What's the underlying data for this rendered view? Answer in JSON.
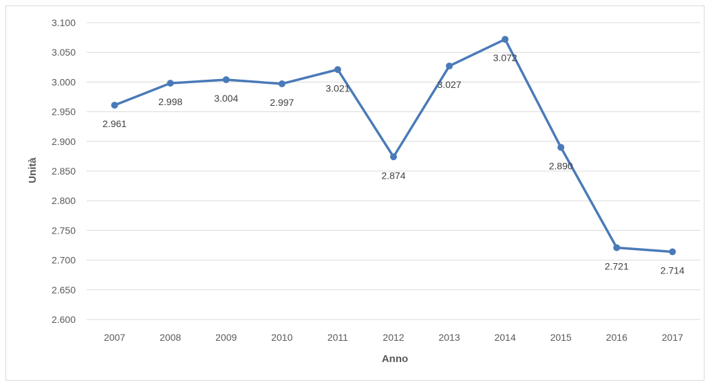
{
  "chart_data": {
    "type": "line",
    "x": [
      "2007",
      "2008",
      "2009",
      "2010",
      "2011",
      "2012",
      "2013",
      "2014",
      "2015",
      "2016",
      "2017"
    ],
    "series": [
      {
        "values": [
          2961,
          2998,
          3004,
          2997,
          3021,
          2874,
          3027,
          3072,
          2890,
          2721,
          2714
        ],
        "labels": [
          "2.961",
          "2.998",
          "3.004",
          "2.997",
          "3.021",
          "2.874",
          "3.027",
          "3.072",
          "2.890",
          "2.721",
          "2.714"
        ]
      }
    ],
    "xlabel": "Anno",
    "ylabel": "Unità",
    "ylim": [
      2600,
      3100
    ],
    "ytick_values": [
      2600,
      2650,
      2700,
      2750,
      2800,
      2850,
      2900,
      2950,
      3000,
      3050,
      3100
    ],
    "yticks": [
      "2.600",
      "2.650",
      "2.700",
      "2.750",
      "2.800",
      "2.850",
      "2.900",
      "2.950",
      "3.000",
      "3.050",
      "3.100"
    ],
    "grid": true,
    "legend": "none",
    "colors": {
      "line": "#4a7ab8",
      "grid": "#d9d9d9",
      "text": "#595959"
    }
  }
}
